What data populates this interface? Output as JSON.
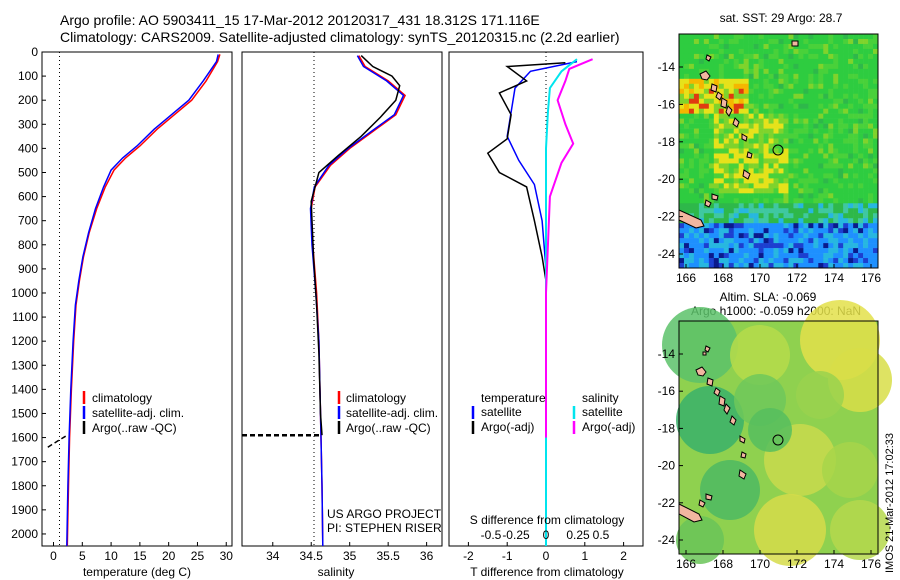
{
  "header": {
    "line1": "Argo profile: AO 5903411_15 17-Mar-2012 20120317_431 18.312S 171.116E",
    "line2": "Climatology: CARS2009. Satellite-adjusted climatology: synTS_20120315.nc (2.2d earlier)"
  },
  "colors": {
    "climatology": "#ff0000",
    "satellite": "#0000ff",
    "argo": "#000000",
    "sat_salinity": "#00e5ee",
    "argo_salinity_adj": "#ff00ff"
  },
  "chart_data": [
    {
      "type": "line",
      "panel": "temperature",
      "xlabel": "temperature (deg C)",
      "xlim": [
        -2,
        31
      ],
      "ylim": [
        0,
        2050
      ],
      "x_ticks": [
        0,
        5,
        10,
        15,
        20,
        25,
        30
      ],
      "y_ticks": [
        0,
        100,
        200,
        300,
        400,
        500,
        600,
        700,
        800,
        900,
        1000,
        1100,
        1200,
        1300,
        1400,
        1500,
        1600,
        1700,
        1800,
        1900,
        2000
      ],
      "legend": [
        "climatology",
        "satellite-adj. clim.",
        "Argo(..raw -QC)"
      ],
      "series": [
        {
          "name": "climatology",
          "points": [
            [
              28.9,
              10
            ],
            [
              28.5,
              40
            ],
            [
              26.5,
              120
            ],
            [
              24,
              200
            ],
            [
              21,
              260
            ],
            [
              18,
              320
            ],
            [
              15,
              390
            ],
            [
              12.5,
              440
            ],
            [
              10.5,
              490
            ],
            [
              9,
              560
            ],
            [
              7.5,
              650
            ],
            [
              6.2,
              750
            ],
            [
              5.2,
              850
            ],
            [
              4.5,
              950
            ],
            [
              3.9,
              1050
            ],
            [
              3.5,
              1200
            ],
            [
              3.1,
              1400
            ],
            [
              2.8,
              1600
            ],
            [
              2.6,
              1800
            ],
            [
              2.4,
              2050
            ]
          ]
        },
        {
          "name": "satellite-adj. clim.",
          "points": [
            [
              28.6,
              10
            ],
            [
              28.3,
              40
            ],
            [
              26,
              120
            ],
            [
              23.5,
              200
            ],
            [
              20.5,
              260
            ],
            [
              17.5,
              320
            ],
            [
              14.5,
              390
            ],
            [
              12,
              440
            ],
            [
              10,
              490
            ],
            [
              8.7,
              560
            ],
            [
              7.3,
              650
            ],
            [
              6.1,
              750
            ],
            [
              5.1,
              850
            ],
            [
              4.4,
              950
            ],
            [
              3.8,
              1050
            ],
            [
              3.4,
              1200
            ],
            [
              3,
              1400
            ],
            [
              2.7,
              1600
            ],
            [
              2.5,
              1800
            ],
            [
              2.3,
              2050
            ]
          ]
        },
        {
          "name": "Argo(..raw -QC)",
          "points": [
            [
              -1,
              1640
            ],
            [
              1,
              1610
            ],
            [
              2.4,
              1590
            ]
          ]
        }
      ]
    },
    {
      "type": "line",
      "panel": "salinity",
      "xlabel": "salinity",
      "xlim": [
        33.6,
        36.2
      ],
      "ylim": [
        0,
        2050
      ],
      "x_ticks": [
        34,
        34.5,
        35,
        35.5,
        36
      ],
      "legend": [
        "climatology",
        "satellite-adj. clim.",
        "Argo(..raw -QC)"
      ],
      "annotations": [
        "US ARGO PROJECT",
        "PI: STEPHEN RISER"
      ],
      "series": [
        {
          "name": "climatology",
          "points": [
            [
              35.12,
              15
            ],
            [
              35.2,
              60
            ],
            [
              35.5,
              120
            ],
            [
              35.72,
              180
            ],
            [
              35.6,
              260
            ],
            [
              35.3,
              330
            ],
            [
              35.0,
              400
            ],
            [
              34.75,
              470
            ],
            [
              34.55,
              560
            ],
            [
              34.5,
              650
            ],
            [
              34.52,
              800
            ],
            [
              34.57,
              1000
            ],
            [
              34.6,
              1200
            ],
            [
              34.62,
              1500
            ],
            [
              34.64,
              1800
            ],
            [
              34.65,
              2050
            ]
          ]
        },
        {
          "name": "satellite-adj. clim.",
          "points": [
            [
              35.1,
              15
            ],
            [
              35.18,
              60
            ],
            [
              35.48,
              120
            ],
            [
              35.7,
              180
            ],
            [
              35.58,
              260
            ],
            [
              35.28,
              330
            ],
            [
              34.98,
              400
            ],
            [
              34.73,
              470
            ],
            [
              34.54,
              560
            ],
            [
              34.49,
              650
            ],
            [
              34.51,
              800
            ],
            [
              34.56,
              1000
            ],
            [
              34.6,
              1200
            ],
            [
              34.62,
              1500
            ],
            [
              34.64,
              1800
            ],
            [
              34.65,
              2050
            ]
          ]
        },
        {
          "name": "Argo(..raw -QC)",
          "points": [
            [
              35.15,
              15
            ],
            [
              35.3,
              60
            ],
            [
              35.55,
              100
            ],
            [
              35.65,
              140
            ],
            [
              35.6,
              200
            ],
            [
              35.4,
              270
            ],
            [
              35.15,
              350
            ],
            [
              34.85,
              430
            ],
            [
              34.6,
              500
            ],
            [
              34.5,
              620
            ],
            [
              34.53,
              850
            ],
            [
              34.57,
              1050
            ],
            [
              34.6,
              1250
            ],
            [
              34.62,
              1500
            ],
            [
              34.64,
              1590
            ]
          ]
        },
        {
          "name": "Argo(..raw -QC)",
          "points": [
            [
              33.6,
              1590
            ],
            [
              34.64,
              1590
            ]
          ]
        }
      ]
    },
    {
      "type": "line",
      "panel": "difference",
      "xlabel": "T difference from climatology",
      "top_axis_label": "S difference from climatology",
      "xlim": [
        -2.5,
        2.5
      ],
      "ylim": [
        0,
        2050
      ],
      "x_ticks": [
        -2,
        -1,
        0,
        1,
        2
      ],
      "top_ticks": [
        "-0.5",
        "-0.25",
        "0",
        "0.25",
        "0.5"
      ],
      "legend_headers": [
        "temperature",
        "salinity"
      ],
      "legend": [
        "satellite",
        "Argo(-adj)",
        "satellite",
        "Argo(-adj)"
      ],
      "series": [
        {
          "name": "temperature satellite",
          "points": [
            [
              0.8,
              40
            ],
            [
              -0.4,
              80
            ],
            [
              -0.8,
              150
            ],
            [
              -0.9,
              250
            ],
            [
              -1.0,
              350
            ],
            [
              -0.7,
              450
            ],
            [
              -0.3,
              550
            ],
            [
              -0.1,
              700
            ],
            [
              0,
              900
            ],
            [
              0,
              1200
            ],
            [
              0,
              1600
            ],
            [
              0,
              2050
            ]
          ]
        },
        {
          "name": "temperature Argo(-adj)",
          "points": [
            [
              0.5,
              45
            ],
            [
              -1.0,
              60
            ],
            [
              -0.5,
              120
            ],
            [
              -1.2,
              170
            ],
            [
              -0.9,
              260
            ],
            [
              -1.0,
              360
            ],
            [
              -1.5,
              420
            ],
            [
              -1.2,
              500
            ],
            [
              -0.5,
              560
            ],
            [
              -0.3,
              700
            ],
            [
              -0.1,
              850
            ],
            [
              0,
              950
            ]
          ]
        },
        {
          "name": "salinity satellite",
          "points": [
            [
              0.8,
              30
            ],
            [
              0.4,
              80
            ],
            [
              0.1,
              150
            ],
            [
              0.05,
              250
            ],
            [
              0,
              400
            ],
            [
              0,
              800
            ],
            [
              0,
              1200
            ],
            [
              0,
              2050
            ]
          ]
        },
        {
          "name": "salinity Argo(-adj)",
          "points": [
            [
              1.2,
              30
            ],
            [
              0.6,
              70
            ],
            [
              0.5,
              120
            ],
            [
              0.3,
              200
            ],
            [
              0.5,
              300
            ],
            [
              0.7,
              380
            ],
            [
              0.4,
              460
            ],
            [
              0.1,
              600
            ],
            [
              0,
              1000
            ],
            [
              0,
              1600
            ]
          ]
        }
      ]
    },
    {
      "type": "heatmap",
      "panel": "sst-map",
      "title": "sat. SST: 29 Argo: 28.7",
      "x_ticks": [
        166,
        168,
        170,
        172,
        174,
        176
      ],
      "y_ticks": [
        -14,
        -16,
        -18,
        -20,
        -22,
        -24
      ],
      "marker": {
        "lon": 171.116,
        "lat": -18.312
      }
    },
    {
      "type": "heatmap",
      "panel": "sla-map",
      "title_line1": "Altim. SLA: -0.069",
      "title_line2": "Argo h1000: -0.059 h2000: NaN",
      "x_ticks": [
        166,
        168,
        170,
        172,
        174,
        176
      ],
      "y_ticks": [
        -14,
        -16,
        -18,
        -20,
        -22,
        -24
      ],
      "marker": {
        "lon": 171.116,
        "lat": -18.312
      }
    }
  ],
  "credit": "IMOS 21-Mar-2012 17:02:33"
}
